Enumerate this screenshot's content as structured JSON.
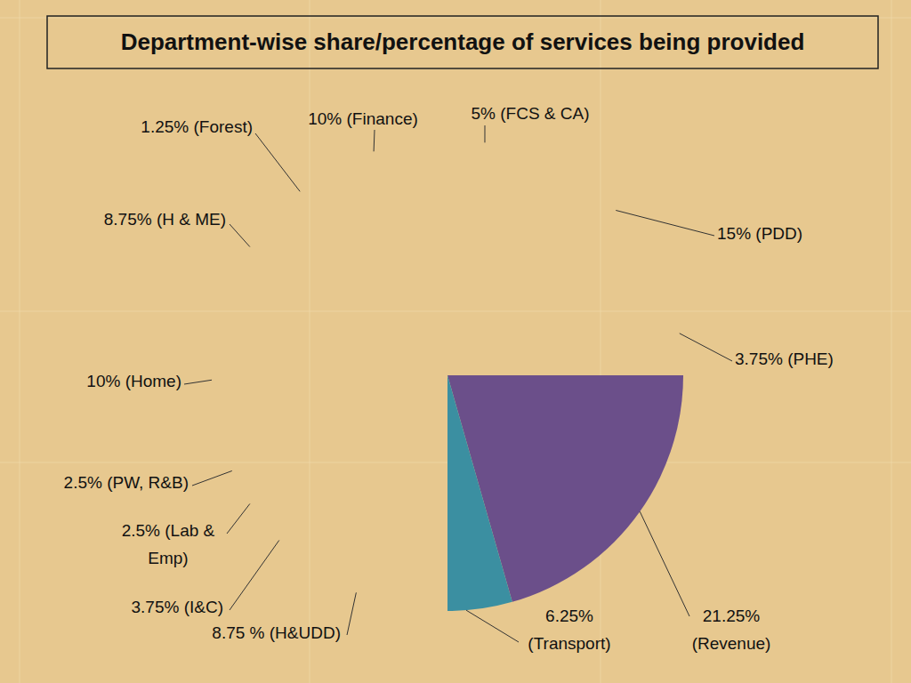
{
  "chart_data": {
    "type": "pie",
    "title": "Department-wise share/percentage of services being provided",
    "categories": [
      "5% (FCS & CA)",
      "15% (PDD)",
      "3.75% (PHE)",
      "21.25%\n(Revenue)",
      "6.25%\n(Transport)",
      "8.75 % (H&UDD)",
      "3.75% (I&C)",
      "2.5% (Lab &\nEmp)",
      "2.5% (PW, R&B)",
      "10% (Home)",
      "8.75% (H & ME)",
      "1.25% (Forest)",
      "10% (Finance)"
    ],
    "values": [
      5,
      15,
      3.75,
      21.25,
      6.25,
      8.75,
      3.75,
      2.5,
      2.5,
      10,
      8.75,
      1.25,
      10
    ],
    "colors": [
      "#7f8c9b",
      "#a0403d",
      "#9caf6e",
      "#6b4f8a",
      "#3b8fa1",
      "#c19b69",
      "#4579c3",
      "#c0504d",
      "#8cb453",
      "#b19bdb",
      "#4bacc6",
      "#f79646",
      "#a9b8d9"
    ]
  }
}
